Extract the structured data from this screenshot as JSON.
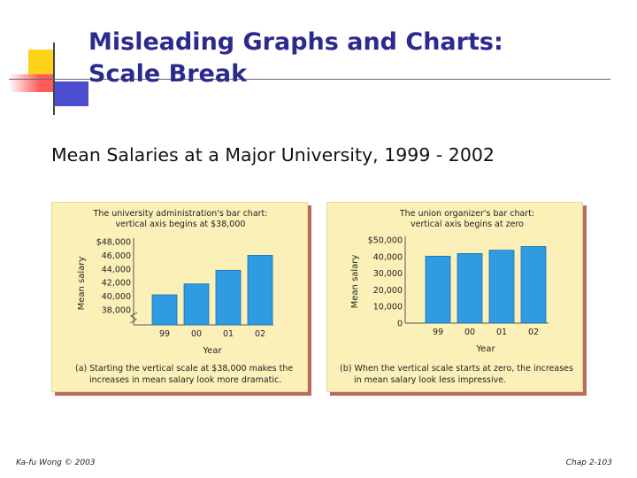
{
  "slide": {
    "title_line1": "Misleading Graphs and Charts:",
    "title_line2": "Scale Break",
    "subtitle": "Mean Salaries at a Major University, 1999 - 2002",
    "footer_left": "Ka-fu Wong © 2003",
    "footer_right": "Chap 2-103"
  },
  "colors": {
    "bar": "#2f9be0",
    "bar_edge": "#1c6fa8",
    "panel_bg": "#fbf1b8",
    "panel_shadow": "#b96a61",
    "title": "#2b2b8f"
  },
  "chart_data": [
    {
      "type": "bar",
      "title_lines": [
        "The university administration's bar chart:",
        "vertical axis begins at $38,000"
      ],
      "categories": [
        "99",
        "00",
        "01",
        "02"
      ],
      "values": [
        40200,
        41800,
        43800,
        46000
      ],
      "ylim": [
        38000,
        48000
      ],
      "yticks": [
        38000,
        40000,
        42000,
        44000,
        46000,
        48000
      ],
      "ytick_labels": [
        "38,000",
        "40,000",
        "42,000",
        "44,000",
        "46,000",
        "$48,000"
      ],
      "scale_break": true,
      "xlabel": "Year",
      "ylabel": "Mean salary",
      "caption_lines": [
        "(a) Starting the vertical scale at $38,000 makes the",
        "increases in mean salary look more dramatic."
      ]
    },
    {
      "type": "bar",
      "title_lines": [
        "The union organizer's bar chart:",
        "vertical axis begins at zero"
      ],
      "categories": [
        "99",
        "00",
        "01",
        "02"
      ],
      "values": [
        40200,
        41800,
        43800,
        46000
      ],
      "ylim": [
        0,
        50000
      ],
      "yticks": [
        0,
        10000,
        20000,
        30000,
        40000,
        50000
      ],
      "ytick_labels": [
        "0",
        "10,000",
        "20,000",
        "30,000",
        "40,000",
        "$50,000"
      ],
      "scale_break": false,
      "xlabel": "Year",
      "ylabel": "Mean salary",
      "caption_lines": [
        "(b) When the vertical scale starts at zero, the increases",
        "in mean salary look less impressive."
      ]
    }
  ]
}
